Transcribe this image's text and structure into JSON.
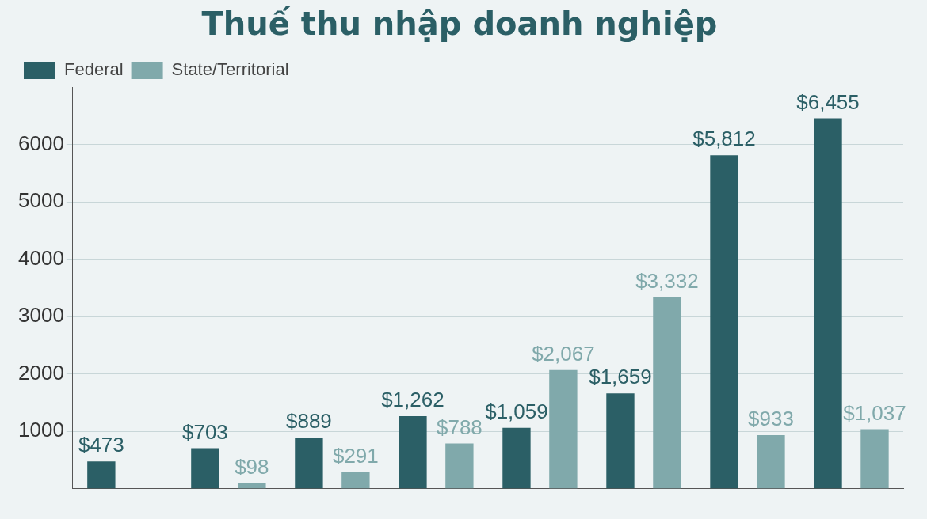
{
  "chart_data": {
    "type": "bar",
    "title": "Thuế thu nhập doanh nghiệp",
    "categories": [
      null,
      null,
      null,
      null,
      null,
      null,
      null,
      null
    ],
    "series": [
      {
        "name": "Federal",
        "color": "#2b5f66",
        "values": [
          473,
          703,
          889,
          1262,
          1059,
          1659,
          5812,
          6455
        ],
        "value_labels": [
          "$473",
          "$703",
          "$889",
          "$1,262",
          "$1,059",
          "$1,659",
          "$5,812",
          "$6,455"
        ]
      },
      {
        "name": "State/Territorial",
        "color": "#80a9ab",
        "values": [
          null,
          98,
          291,
          788,
          2067,
          3332,
          933,
          1037
        ],
        "value_labels": [
          null,
          "$98",
          "$291",
          "$788",
          "$2,067",
          "$3,332",
          "$933",
          "$1,037"
        ]
      }
    ],
    "ylim": [
      0,
      7000
    ],
    "yticks": [
      1000,
      2000,
      3000,
      4000,
      5000,
      6000
    ],
    "grid": "y",
    "legend": "top left"
  }
}
